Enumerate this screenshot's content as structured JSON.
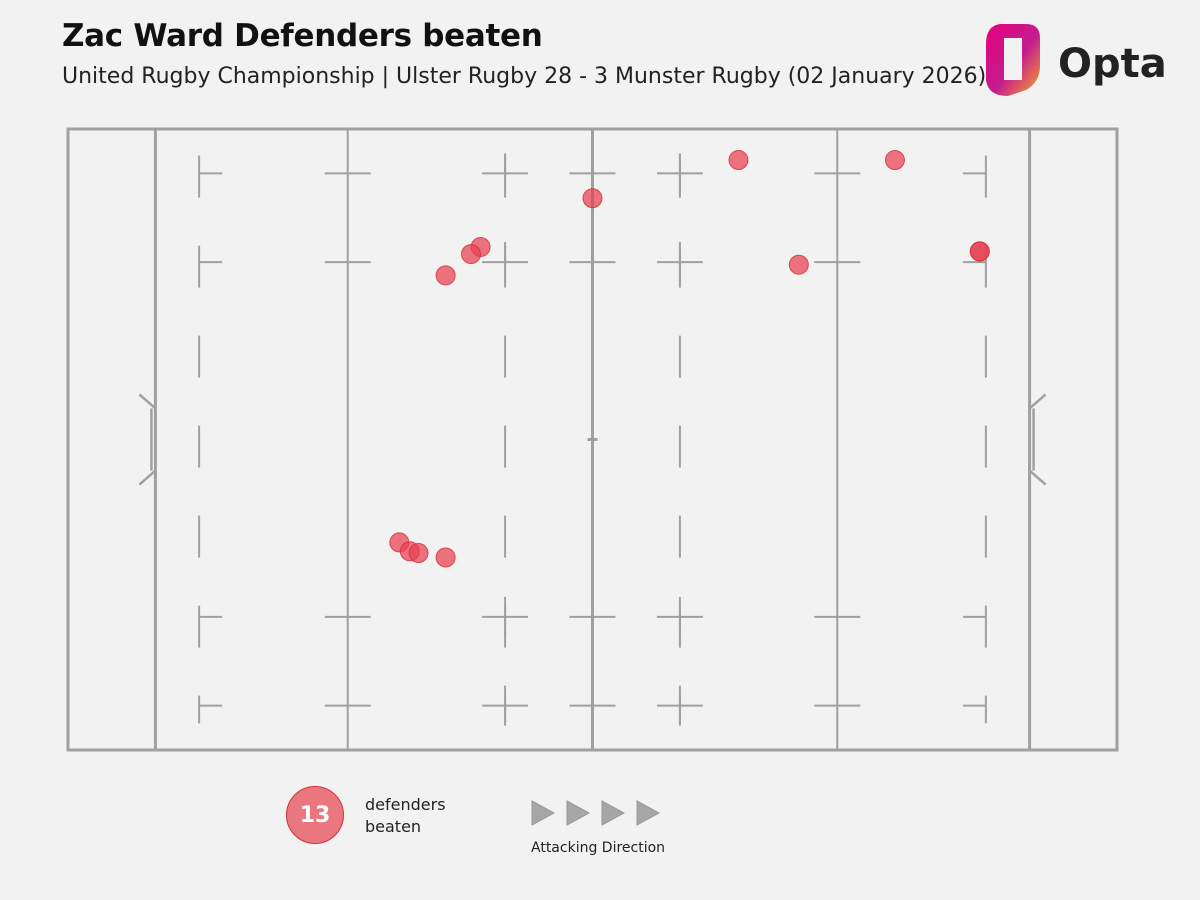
{
  "header": {
    "title": "Zac Ward Defenders beaten",
    "subtitle": "United Rugby Championship | Ulster Rugby 28 - 3 Munster Rugby (02 January 2026)"
  },
  "brand": {
    "name": "Opta",
    "logo_gradient": [
      "#e6007e",
      "#f7a823"
    ]
  },
  "colors": {
    "marker": "#e8404f",
    "pitch_line": "#a0a0a0",
    "background": "#f2f2f2"
  },
  "legend": {
    "count": "13",
    "label_line1": "defenders",
    "label_line2": "beaten",
    "direction_label": "Attacking Direction",
    "direction_icon": "play-arrow-icon"
  },
  "chart_data": {
    "type": "scatter",
    "description_units": "metres; x along pitch including in-goal (0-120), y across pitch (0-70)",
    "xlim": [
      0,
      120
    ],
    "ylim": [
      0,
      70
    ],
    "points": [
      {
        "x": 76.7,
        "y": 3.5
      },
      {
        "x": 94.6,
        "y": 3.5
      },
      {
        "x": 60.0,
        "y": 7.8
      },
      {
        "x": 47.2,
        "y": 13.3
      },
      {
        "x": 46.1,
        "y": 14.1
      },
      {
        "x": 43.2,
        "y": 16.5
      },
      {
        "x": 83.6,
        "y": 15.3
      },
      {
        "x": 104.3,
        "y": 13.8
      },
      {
        "x": 104.3,
        "y": 13.8
      },
      {
        "x": 37.9,
        "y": 46.6
      },
      {
        "x": 39.1,
        "y": 47.6
      },
      {
        "x": 40.1,
        "y": 47.8
      },
      {
        "x": 43.2,
        "y": 48.3
      }
    ]
  }
}
